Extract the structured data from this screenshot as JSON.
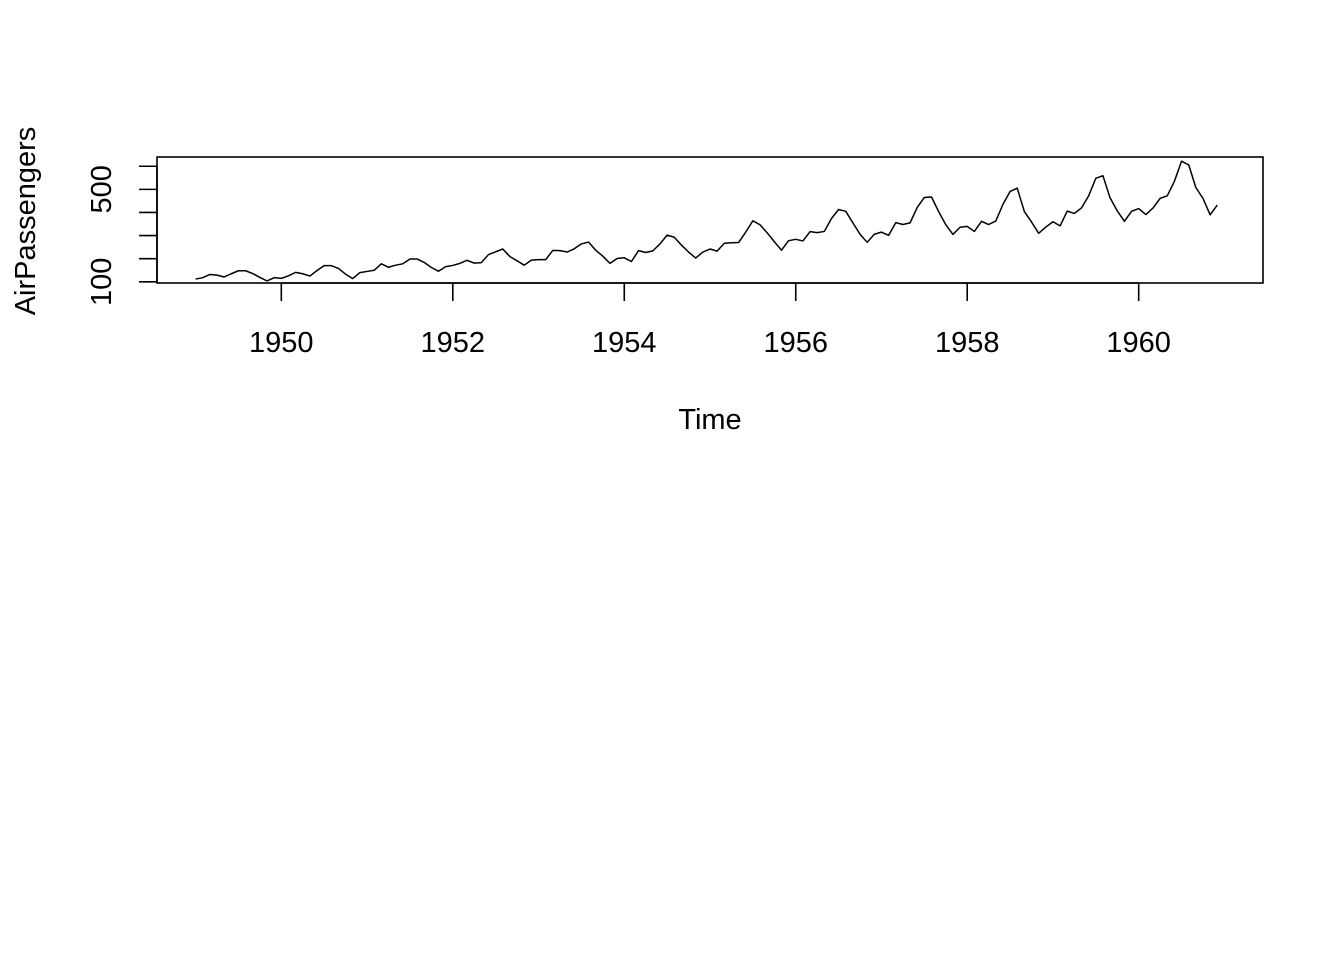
{
  "chart_data": {
    "type": "line",
    "title": "",
    "xlabel": "Time",
    "ylabel": "AirPassengers",
    "x_start": 1949,
    "x_step_months": 1,
    "xlim": [
      1948.55,
      1961.45
    ],
    "ylim": [
      95,
      640
    ],
    "x_ticks": [
      1950,
      1952,
      1954,
      1956,
      1958,
      1960
    ],
    "x_tick_labels": [
      "1950",
      "1952",
      "1954",
      "1956",
      "1958",
      "1960"
    ],
    "y_ticks": [
      100,
      200,
      300,
      400,
      500,
      600
    ],
    "y_tick_labels": [
      "100",
      "",
      "",
      "",
      "500",
      ""
    ],
    "grid": false,
    "legend": "none",
    "line_color": "#000000",
    "series": [
      {
        "values": [
          112,
          118,
          132,
          129,
          121,
          135,
          148,
          148,
          136,
          119,
          104,
          118,
          115,
          126,
          141,
          135,
          125,
          149,
          170,
          170,
          158,
          133,
          114,
          140,
          145,
          150,
          178,
          163,
          172,
          178,
          199,
          199,
          184,
          162,
          146,
          166,
          171,
          180,
          193,
          181,
          183,
          218,
          230,
          242,
          209,
          191,
          172,
          194,
          196,
          196,
          236,
          235,
          229,
          243,
          264,
          272,
          237,
          211,
          180,
          201,
          204,
          188,
          235,
          227,
          234,
          264,
          302,
          293,
          259,
          229,
          203,
          229,
          242,
          233,
          267,
          269,
          270,
          315,
          364,
          347,
          312,
          274,
          237,
          278,
          284,
          277,
          317,
          313,
          318,
          374,
          413,
          405,
          355,
          306,
          271,
          306,
          315,
          301,
          356,
          348,
          355,
          422,
          465,
          467,
          404,
          347,
          305,
          336,
          340,
          318,
          362,
          348,
          363,
          435,
          491,
          505,
          404,
          359,
          310,
          337,
          360,
          342,
          406,
          396,
          420,
          472,
          548,
          559,
          463,
          407,
          362,
          405,
          417,
          391,
          419,
          461,
          472,
          535,
          622,
          606,
          508,
          461,
          390,
          432
        ]
      }
    ]
  }
}
